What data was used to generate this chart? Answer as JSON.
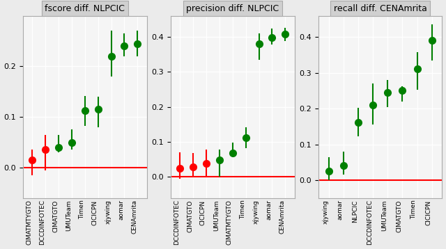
{
  "panel1": {
    "title": "fscore diff. NLPCIC",
    "categories": [
      "CIMATMTYGTO",
      "DCCDINFOTEC",
      "CIMATGTO",
      "UMUTeam",
      "Timen",
      "CICICPN",
      "xjywing",
      "aomar",
      "CENAmrita"
    ],
    "means": [
      0.015,
      0.035,
      0.04,
      0.05,
      0.112,
      0.115,
      0.22,
      0.24,
      0.245
    ],
    "ci_low": [
      -0.015,
      -0.005,
      0.03,
      0.035,
      0.082,
      0.08,
      0.18,
      0.22,
      0.22
    ],
    "ci_high": [
      0.035,
      0.065,
      0.065,
      0.075,
      0.142,
      0.14,
      0.27,
      0.265,
      0.27
    ],
    "colors": [
      "red",
      "red",
      "green",
      "green",
      "green",
      "green",
      "green",
      "green",
      "green"
    ],
    "ylim": [
      -0.06,
      0.3
    ],
    "yticks": [
      0.0,
      0.1,
      0.2
    ]
  },
  "panel2": {
    "title": "precision diff. NLPCIC",
    "categories": [
      "DCCDINFOTEC",
      "CIMATGTO",
      "CICICPN",
      "UMUTeam",
      "CIMATMTYGTO",
      "Timen",
      "xjywing",
      "aomar",
      "CENAmrita"
    ],
    "means": [
      0.025,
      0.028,
      0.038,
      0.048,
      0.068,
      0.112,
      0.38,
      0.398,
      0.408
    ],
    "ci_low": [
      -0.005,
      -0.002,
      -0.002,
      0.0,
      0.058,
      0.082,
      0.335,
      0.378,
      0.388
    ],
    "ci_high": [
      0.07,
      0.068,
      0.078,
      0.078,
      0.098,
      0.142,
      0.41,
      0.423,
      0.426
    ],
    "colors": [
      "red",
      "red",
      "red",
      "green",
      "green",
      "green",
      "green",
      "green",
      "green"
    ],
    "ylim": [
      -0.06,
      0.46
    ],
    "yticks": [
      0.0,
      0.1,
      0.2,
      0.3,
      0.4
    ]
  },
  "panel3": {
    "title": "recall diff. CENAmrita",
    "categories": [
      "xjywing",
      "aomar",
      "NLPCIC",
      "DCCDINFOTEC",
      "UMUTeam",
      "CIMATGTO",
      "Timen",
      "CICICPN"
    ],
    "means": [
      0.025,
      0.04,
      0.162,
      0.21,
      0.245,
      0.25,
      0.312,
      0.39
    ],
    "ci_low": [
      0.0,
      0.015,
      0.122,
      0.155,
      0.205,
      0.22,
      0.252,
      0.335
    ],
    "ci_high": [
      0.065,
      0.08,
      0.202,
      0.27,
      0.28,
      0.262,
      0.357,
      0.435
    ],
    "colors": [
      "green",
      "green",
      "green",
      "green",
      "green",
      "green",
      "green",
      "green"
    ],
    "ylim": [
      -0.05,
      0.46
    ],
    "yticks": [
      0.0,
      0.1,
      0.2,
      0.3,
      0.4
    ]
  },
  "bg_color": "#ebebeb",
  "panel_bg": "#f5f5f5",
  "title_bg": "#d0d0d0",
  "grid_color": "#ffffff",
  "marker_size": 7
}
